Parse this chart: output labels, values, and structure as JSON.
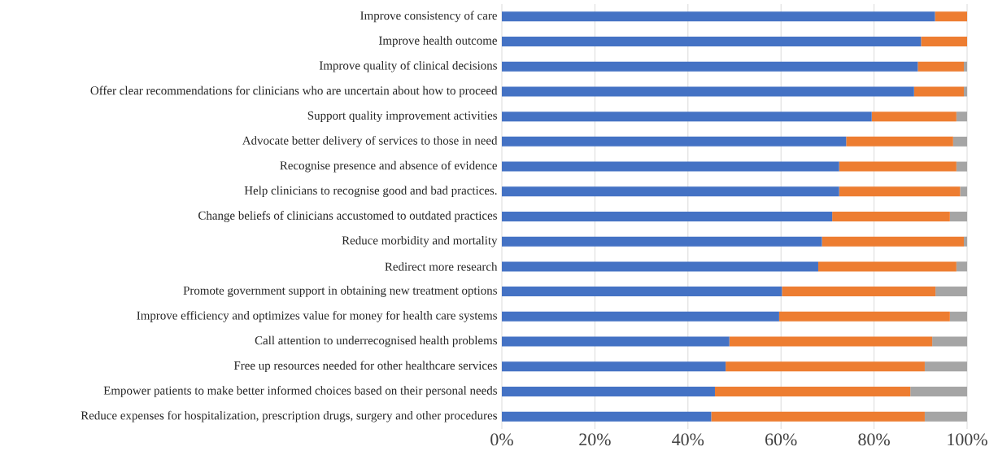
{
  "chart_data": {
    "type": "bar",
    "orientation": "horizontal",
    "stacked": true,
    "grid": "x",
    "categories": [
      "Improve consistency of care",
      "Improve health outcome",
      "Improve quality of clinical decisions",
      "Offer clear recommendations for clinicians who are uncertain about how to proceed",
      "Support quality improvement activities",
      "Advocate better delivery of services to those in need",
      "Recognise presence and absence of evidence",
      "Help clinicians to recognise good and bad practices.",
      "Change beliefs of clinicians accustomed to outdated practices",
      "Reduce morbidity and mortality",
      "Redirect more research",
      "Promote government support in obtaining new treatment options",
      "Improve efficiency and optimizes value for money for health care systems",
      "Call attention to underrecognised health problems",
      "Free up resources needed for other healthcare services",
      "Empower patients to make better informed choices based on their personal needs",
      "Reduce expenses for hospitalization, prescription drugs, surgery and other procedures"
    ],
    "series": [
      {
        "color": "#4472c4",
        "values": [
          93.1,
          90.1,
          89.4,
          88.6,
          79.5,
          74.0,
          72.5,
          72.5,
          71.0,
          68.8,
          68.0,
          60.2,
          59.6,
          48.9,
          48.1,
          45.8,
          45.0
        ]
      },
      {
        "color": "#ed7d31",
        "values": [
          6.9,
          9.9,
          9.9,
          10.7,
          18.2,
          23.0,
          25.2,
          26.0,
          25.3,
          30.5,
          29.7,
          33.0,
          36.7,
          43.6,
          42.8,
          42.0,
          45.9
        ]
      },
      {
        "color": "#a5a5a5",
        "values": [
          0,
          0,
          0.7,
          0.7,
          2.3,
          3.0,
          2.3,
          1.5,
          3.7,
          0.7,
          2.3,
          6.8,
          3.7,
          7.5,
          9.1,
          12.2,
          9.1
        ]
      }
    ],
    "xlim": [
      0,
      100
    ],
    "xticks": [
      {
        "value": 0,
        "label": "0%"
      },
      {
        "value": 20,
        "label": "20%"
      },
      {
        "value": 40,
        "label": "40%"
      },
      {
        "value": 60,
        "label": "60%"
      },
      {
        "value": 80,
        "label": "80%"
      },
      {
        "value": 100,
        "label": "100%"
      }
    ]
  }
}
